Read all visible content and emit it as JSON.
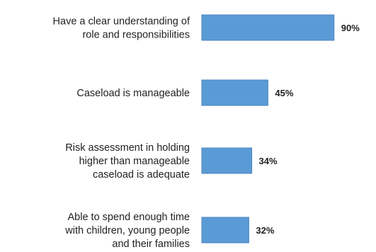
{
  "chart_data": {
    "type": "bar",
    "orientation": "horizontal",
    "categories": [
      [
        "Have a clear understanding of",
        "role and responsibilities"
      ],
      [
        "Caseload is manageable"
      ],
      [
        "Risk assessment in holding",
        "higher than manageable",
        "caseload is adequate"
      ],
      [
        "Able to spend enough time",
        "with children, young people",
        "and their families"
      ]
    ],
    "values": [
      90,
      45,
      34,
      32
    ],
    "value_labels": [
      "90%",
      "45%",
      "34%",
      "32%"
    ],
    "xlim": [
      0,
      100
    ],
    "grid": false,
    "legend": "none",
    "bar_color": "#5b9bd5",
    "bar_edge_color": "#4a86c0"
  }
}
